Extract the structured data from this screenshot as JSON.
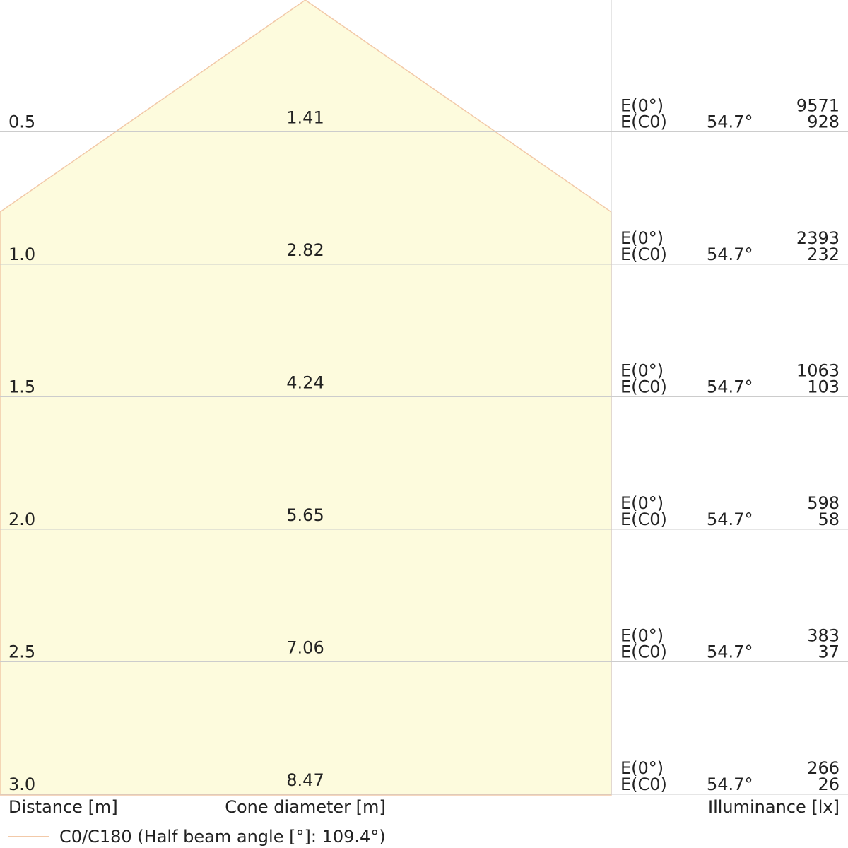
{
  "chart_data": {
    "type": "cone_diagram",
    "xlabel": "Distance [m]",
    "center_label": "Cone diameter [m]",
    "right_label": "Illuminance [lx]",
    "legend": "C0/C180 (Half beam angle [°]: 109.4°)",
    "half_beam_angle_deg": 109.4,
    "e0_label": "E(0°)",
    "ec0_label": "E(C0)",
    "rows": [
      {
        "distance": "0.5",
        "diameter": "1.41",
        "angle": "54.7°",
        "e0": "9571",
        "ec0": "928"
      },
      {
        "distance": "1.0",
        "diameter": "2.82",
        "angle": "54.7°",
        "e0": "2393",
        "ec0": "232"
      },
      {
        "distance": "1.5",
        "diameter": "4.24",
        "angle": "54.7°",
        "e0": "1063",
        "ec0": "103"
      },
      {
        "distance": "2.0",
        "diameter": "5.65",
        "angle": "54.7°",
        "e0": "598",
        "ec0": "58"
      },
      {
        "distance": "2.5",
        "diameter": "7.06",
        "angle": "54.7°",
        "e0": "383",
        "ec0": "37"
      },
      {
        "distance": "3.0",
        "diameter": "8.47",
        "angle": "54.7°",
        "e0": "266",
        "ec0": "26"
      }
    ],
    "colors": {
      "cone_fill": "#fdfbdd",
      "cone_edge": "#f2c9a8",
      "grid": "#cccccc",
      "text": "#222222"
    }
  }
}
